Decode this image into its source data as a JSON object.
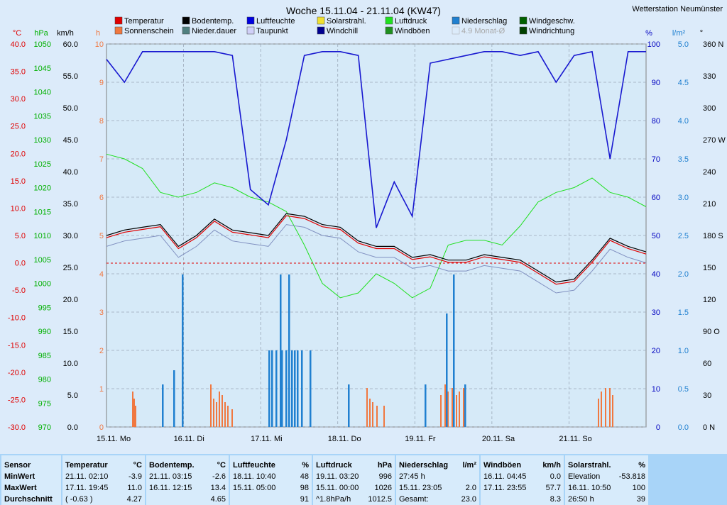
{
  "chart_data": {
    "type": "line",
    "title": "Woche 15.11.04 - 21.11.04 (KW47)",
    "station": "Wetterstation Neumünster",
    "legend": [
      {
        "name": "Temperatur",
        "color": "#e00000"
      },
      {
        "name": "Sonnenschein",
        "color": "#f07840"
      },
      {
        "name": "Bodentemp.",
        "color": "#000000"
      },
      {
        "name": "Nieder.dauer",
        "color": "#508080"
      },
      {
        "name": "Luftfeuchte",
        "color": "#0000e0"
      },
      {
        "name": "Taupunkt",
        "color": "#d0d0f8"
      },
      {
        "name": "Solarstrahl.",
        "color": "#f0e030"
      },
      {
        "name": "Windchill",
        "color": "#000090"
      },
      {
        "name": "Luftdruck",
        "color": "#20e020"
      },
      {
        "name": "Windböen",
        "color": "#209020"
      },
      {
        "name": "Niederschlag",
        "color": "#2080d0"
      },
      {
        "name": "4.9 Monat-Ø",
        "color": "#a8a8a8"
      },
      {
        "name": "Windgeschw.",
        "color": "#006000"
      },
      {
        "name": "Windrichtung",
        "color": "#004000"
      }
    ],
    "axes": {
      "temp": {
        "unit": "°C",
        "ticks": [
          "40.0",
          "35.0",
          "30.0",
          "25.0",
          "20.0",
          "15.0",
          "10.0",
          "5.0",
          "0.0",
          "-5.0",
          "-10.0",
          "-15.0",
          "-20.0",
          "-25.0",
          "-30.0"
        ],
        "color": "#e00000"
      },
      "pressure": {
        "unit": "hPa",
        "ticks": [
          "1050",
          "1045",
          "1040",
          "1035",
          "1030",
          "1025",
          "1020",
          "1015",
          "1010",
          "1005",
          "1000",
          "995",
          "990",
          "985",
          "980",
          "975",
          "970"
        ],
        "color": "#00b000"
      },
      "wind": {
        "unit": "km/h",
        "ticks": [
          "60.0",
          "55.0",
          "50.0",
          "45.0",
          "40.0",
          "35.0",
          "30.0",
          "25.0",
          "20.0",
          "15.0",
          "10.0",
          "5.0",
          "0.0"
        ],
        "color": "#000000"
      },
      "sun": {
        "unit": "h",
        "ticks": [
          "10",
          "9",
          "8",
          "7",
          "6",
          "5",
          "4",
          "3",
          "2",
          "1",
          "0"
        ],
        "color": "#f07840"
      },
      "humidity": {
        "unit": "%",
        "ticks": [
          "100",
          "90",
          "80",
          "70",
          "60",
          "50",
          "40",
          "30",
          "20",
          "10",
          "0"
        ],
        "color": "#0000c0"
      },
      "rain": {
        "unit": "l/m²",
        "ticks": [
          "5.0",
          "4.5",
          "4.0",
          "3.5",
          "3.0",
          "2.5",
          "2.0",
          "1.5",
          "1.0",
          "0.5",
          "0.0"
        ],
        "color": "#2080d0"
      },
      "direction": {
        "unit": "°",
        "ticks": [
          "360 N",
          "330",
          "300",
          "270 W",
          "240",
          "210",
          "180 S",
          "150",
          "120",
          "90 O",
          "60",
          "30",
          "0 N"
        ],
        "color": "#000000"
      }
    },
    "days": [
      "15.11. Mo",
      "16.11. Di",
      "17.11. Mi",
      "18.11. Do",
      "19.11. Fr",
      "20.11. Sa",
      "21.11. So"
    ],
    "series": [
      {
        "name": "Temperatur",
        "values": [
          5.0,
          6.0,
          6.5,
          7.0,
          3.0,
          5.0,
          8.0,
          6.0,
          5.5,
          5.0,
          9.0,
          8.5,
          7.0,
          6.5,
          4.0,
          3.0,
          3.0,
          1.0,
          1.5,
          0.5,
          0.5,
          1.5,
          1.0,
          0.5,
          -1.5,
          -3.5,
          -3.0,
          0.5,
          4.5,
          3.0,
          2.0
        ]
      },
      {
        "name": "Luftdruck",
        "values": [
          1027,
          1026,
          1024,
          1019,
          1018,
          1019,
          1021,
          1020,
          1018,
          1017,
          1015,
          1008,
          1000,
          997,
          998,
          1002,
          1000,
          997,
          999,
          1008,
          1009,
          1009,
          1008,
          1012,
          1017,
          1019,
          1020,
          1022,
          1019,
          1018,
          1016
        ]
      },
      {
        "name": "Luftfeuchte",
        "values": [
          96,
          90,
          98,
          98,
          98,
          98,
          98,
          97,
          62,
          58,
          75,
          97,
          98,
          98,
          97,
          52,
          64,
          55,
          95,
          96,
          97,
          98,
          98,
          97,
          98,
          90,
          97,
          98,
          70,
          98,
          98
        ]
      }
    ]
  },
  "table": {
    "columns": [
      {
        "title": "Sensor",
        "rows": [
          "MinWert",
          "MaxWert",
          "Durchschnitt"
        ]
      },
      {
        "title": "Temperatur",
        "unit": "°C",
        "rows": [
          [
            "21.11.  02:10",
            "-3.9"
          ],
          [
            "17.11.  19:45",
            "11.0"
          ],
          [
            "( -0.63 )",
            "4.27"
          ]
        ]
      },
      {
        "title": "Bodentemp.",
        "unit": "°C",
        "rows": [
          [
            "21.11.  03:15",
            "-2.6"
          ],
          [
            "16.11.  12:15",
            "13.4"
          ],
          [
            "",
            "4.65"
          ]
        ]
      },
      {
        "title": "Luftfeuchte",
        "unit": "%",
        "rows": [
          [
            "18.11.  10:40",
            "48"
          ],
          [
            "15.11.  05:00",
            "98"
          ],
          [
            "",
            "91"
          ]
        ]
      },
      {
        "title": "Luftdruck",
        "unit": "hPa",
        "rows": [
          [
            "19.11.  03:20",
            "996"
          ],
          [
            "15.11.  00:00",
            "1026"
          ],
          [
            "^1.8hPa/h",
            "1012.5"
          ]
        ]
      },
      {
        "title": "Niederschlag",
        "unit": "l/m²",
        "rows": [
          [
            "27:45 h",
            ""
          ],
          [
            "15.11.  23:05",
            "2.0"
          ],
          [
            "Gesamt:",
            "23.0"
          ]
        ]
      },
      {
        "title": "Windböen",
        "unit": "km/h",
        "rows": [
          [
            "16.11.  04:45",
            "0.0"
          ],
          [
            "17.11.  23:55",
            "57.7"
          ],
          [
            "",
            "8.3"
          ]
        ]
      },
      {
        "title": "Solarstrahl.",
        "unit": "%",
        "rows": [
          [
            "Elevation",
            "-53.818"
          ],
          [
            "16.11.  10:50",
            "100"
          ],
          [
            "26:50 h",
            "39"
          ]
        ]
      }
    ]
  }
}
